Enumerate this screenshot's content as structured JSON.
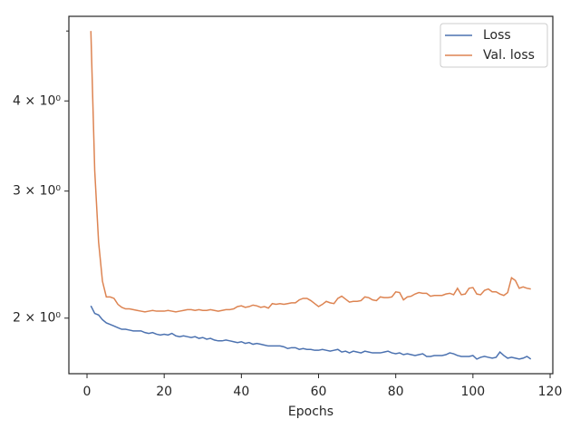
{
  "chart_data": {
    "type": "line",
    "xlabel": "Epochs",
    "log_y": true,
    "legend": "upper right",
    "x": [
      1,
      2,
      3,
      4,
      5,
      6,
      7,
      8,
      9,
      10,
      11,
      12,
      13,
      14,
      15,
      16,
      17,
      18,
      19,
      20,
      21,
      22,
      23,
      24,
      25,
      26,
      27,
      28,
      29,
      30,
      31,
      32,
      33,
      34,
      35,
      36,
      37,
      38,
      39,
      40,
      41,
      42,
      43,
      44,
      45,
      46,
      47,
      48,
      49,
      50,
      51,
      52,
      53,
      54,
      55,
      56,
      57,
      58,
      59,
      60,
      61,
      62,
      63,
      64,
      65,
      66,
      67,
      68,
      69,
      70,
      71,
      72,
      73,
      74,
      75,
      76,
      77,
      78,
      79,
      80,
      81,
      82,
      83,
      84,
      85,
      86,
      87,
      88,
      89,
      90,
      91,
      92,
      93,
      94,
      95,
      96,
      97,
      98,
      99,
      100,
      101,
      102,
      103,
      104,
      105,
      106,
      107,
      108,
      109,
      110,
      111,
      112,
      113,
      114,
      115
    ],
    "series": [
      {
        "name": "Loss",
        "color": "#4c72b0",
        "values": [
          2.08,
          2.03,
          2.02,
          1.99,
          1.97,
          1.96,
          1.95,
          1.94,
          1.93,
          1.93,
          1.925,
          1.92,
          1.92,
          1.92,
          1.91,
          1.905,
          1.91,
          1.9,
          1.895,
          1.9,
          1.895,
          1.905,
          1.89,
          1.885,
          1.89,
          1.885,
          1.88,
          1.885,
          1.875,
          1.88,
          1.87,
          1.875,
          1.865,
          1.86,
          1.86,
          1.865,
          1.86,
          1.855,
          1.85,
          1.855,
          1.845,
          1.85,
          1.84,
          1.845,
          1.84,
          1.835,
          1.83,
          1.83,
          1.83,
          1.83,
          1.825,
          1.815,
          1.82,
          1.82,
          1.81,
          1.815,
          1.81,
          1.81,
          1.805,
          1.805,
          1.81,
          1.805,
          1.8,
          1.805,
          1.81,
          1.795,
          1.8,
          1.79,
          1.8,
          1.795,
          1.79,
          1.8,
          1.795,
          1.79,
          1.79,
          1.79,
          1.795,
          1.8,
          1.79,
          1.785,
          1.79,
          1.78,
          1.785,
          1.78,
          1.775,
          1.78,
          1.785,
          1.77,
          1.77,
          1.775,
          1.775,
          1.775,
          1.78,
          1.79,
          1.785,
          1.775,
          1.77,
          1.77,
          1.77,
          1.775,
          1.755,
          1.765,
          1.77,
          1.765,
          1.76,
          1.765,
          1.795,
          1.775,
          1.76,
          1.765,
          1.76,
          1.755,
          1.76,
          1.77,
          1.755
        ]
      },
      {
        "name": "Val. loss",
        "color": "#dd8452",
        "values": [
          5.0,
          3.2,
          2.55,
          2.25,
          2.14,
          2.14,
          2.13,
          2.09,
          2.07,
          2.06,
          2.06,
          2.055,
          2.05,
          2.045,
          2.04,
          2.045,
          2.05,
          2.045,
          2.045,
          2.045,
          2.05,
          2.045,
          2.04,
          2.045,
          2.05,
          2.055,
          2.055,
          2.05,
          2.055,
          2.05,
          2.05,
          2.055,
          2.05,
          2.045,
          2.05,
          2.055,
          2.055,
          2.06,
          2.075,
          2.08,
          2.07,
          2.075,
          2.085,
          2.08,
          2.07,
          2.075,
          2.065,
          2.095,
          2.09,
          2.095,
          2.09,
          2.095,
          2.1,
          2.1,
          2.12,
          2.13,
          2.13,
          2.115,
          2.095,
          2.075,
          2.09,
          2.11,
          2.1,
          2.095,
          2.13,
          2.145,
          2.125,
          2.105,
          2.11,
          2.11,
          2.115,
          2.14,
          2.135,
          2.12,
          2.115,
          2.14,
          2.135,
          2.135,
          2.14,
          2.175,
          2.17,
          2.12,
          2.14,
          2.145,
          2.16,
          2.17,
          2.165,
          2.165,
          2.145,
          2.15,
          2.15,
          2.15,
          2.16,
          2.165,
          2.155,
          2.2,
          2.155,
          2.16,
          2.2,
          2.205,
          2.16,
          2.155,
          2.185,
          2.195,
          2.175,
          2.175,
          2.16,
          2.15,
          2.17,
          2.275,
          2.255,
          2.2,
          2.21,
          2.2,
          2.195
        ]
      }
    ],
    "xlim": [
      -4.7,
      120.7
    ],
    "xticks": [
      0,
      20,
      40,
      60,
      80,
      100,
      120
    ],
    "ylim": [
      1.675,
      5.24
    ],
    "yticks": [
      {
        "value": 2,
        "label": "2 × 10⁰"
      },
      {
        "value": 3,
        "label": "3 × 10⁰"
      },
      {
        "value": 4,
        "label": "4 × 10⁰"
      }
    ],
    "yminorticks": [
      5
    ]
  }
}
